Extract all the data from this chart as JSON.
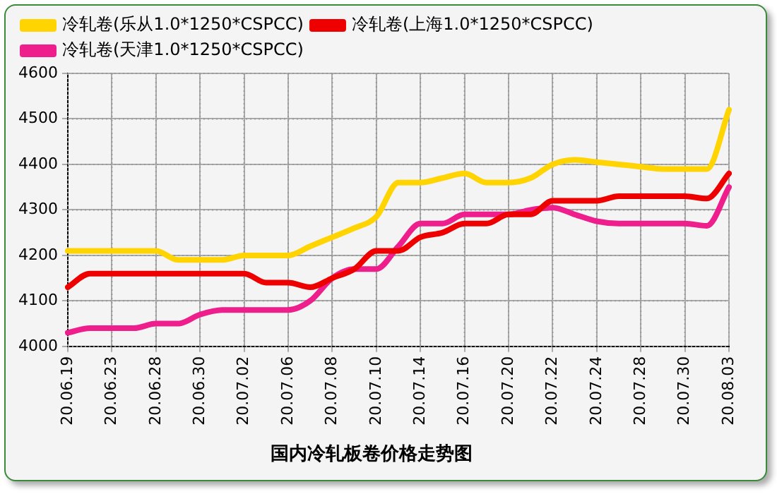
{
  "chart_data": {
    "type": "line",
    "title": "国内冷轧板卷价格走势图",
    "categories": [
      "20.06.19",
      null,
      "20.06.23",
      null,
      "20.06.28",
      null,
      "20.06.30",
      null,
      "20.07.02",
      null,
      "20.07.06",
      null,
      "20.07.08",
      null,
      "20.07.10",
      null,
      "20.07.14",
      null,
      "20.07.16",
      null,
      "20.07.20",
      null,
      "20.07.22",
      null,
      "20.07.24",
      null,
      "20.07.28",
      null,
      "20.07.30",
      null,
      "20.08.03"
    ],
    "series": [
      {
        "name": "冷轧卷(乐从1.0*1250*CSPCC)",
        "color": "#ffd400",
        "values": [
          4210,
          4210,
          4210,
          4210,
          4210,
          4190,
          4190,
          4190,
          4200,
          4200,
          4200,
          4220,
          4240,
          4260,
          4285,
          4360,
          4360,
          4370,
          4380,
          4360,
          4360,
          4370,
          4400,
          4410,
          4405,
          4400,
          4395,
          4390,
          4390,
          4390,
          4520
        ]
      },
      {
        "name": "冷轧卷(上海1.0*1250*CSPCC)",
        "color": "#ee0000",
        "values": [
          4130,
          4160,
          4160,
          4160,
          4160,
          4160,
          4160,
          4160,
          4160,
          4140,
          4140,
          4130,
          4150,
          4170,
          4210,
          4210,
          4240,
          4250,
          4270,
          4270,
          4290,
          4290,
          4320,
          4320,
          4320,
          4330,
          4330,
          4330,
          4330,
          4325,
          4380
        ]
      },
      {
        "name": "冷轧卷(天津1.0*1250*CSPCC)",
        "color": "#ee1e8c",
        "values": [
          4030,
          4040,
          4040,
          4040,
          4050,
          4050,
          4070,
          4080,
          4080,
          4080,
          4080,
          4100,
          4150,
          4170,
          4170,
          4220,
          4270,
          4270,
          4290,
          4290,
          4290,
          4300,
          4305,
          4290,
          4275,
          4270,
          4270,
          4270,
          4270,
          4265,
          4350
        ]
      }
    ],
    "ylim": [
      4000,
      4600
    ],
    "yticks": [
      4000,
      4100,
      4200,
      4300,
      4400,
      4500,
      4600
    ],
    "grid": true,
    "legend": "top",
    "marker": "none",
    "line_style": "solid"
  }
}
